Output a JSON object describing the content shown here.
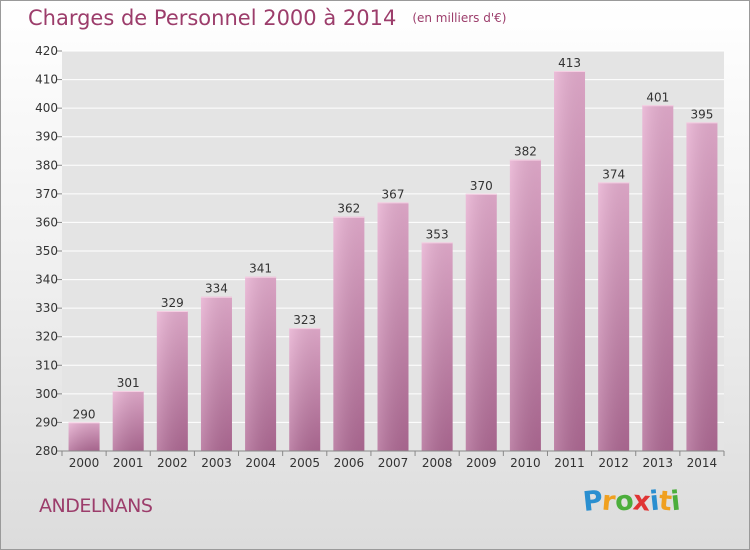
{
  "chart_data": {
    "type": "bar",
    "title": "Charges de Personnel 2000 à 2014",
    "subtitle": "(en milliers d'€)",
    "categories": [
      "2000",
      "2001",
      "2002",
      "2003",
      "2004",
      "2005",
      "2006",
      "2007",
      "2008",
      "2009",
      "2010",
      "2011",
      "2012",
      "2013",
      "2014"
    ],
    "values": [
      290,
      301,
      329,
      334,
      341,
      323,
      362,
      367,
      353,
      370,
      382,
      413,
      374,
      401,
      395
    ],
    "ylim": [
      280,
      420
    ],
    "yticks": [
      280,
      290,
      300,
      310,
      320,
      330,
      340,
      350,
      360,
      370,
      380,
      390,
      400,
      410,
      420
    ],
    "xlabel": "",
    "ylabel": "",
    "grid": true,
    "bar_color": "#d78fb8"
  },
  "commune": "ANDELNANS",
  "logo": {
    "letters": [
      "P",
      "r",
      "o",
      "x",
      "i",
      "t",
      "i"
    ],
    "colors": [
      "#2a8fd0",
      "#f0a020",
      "#4cae3c",
      "#e03434",
      "#2a8fd0",
      "#f0a020",
      "#4cae3c"
    ]
  }
}
